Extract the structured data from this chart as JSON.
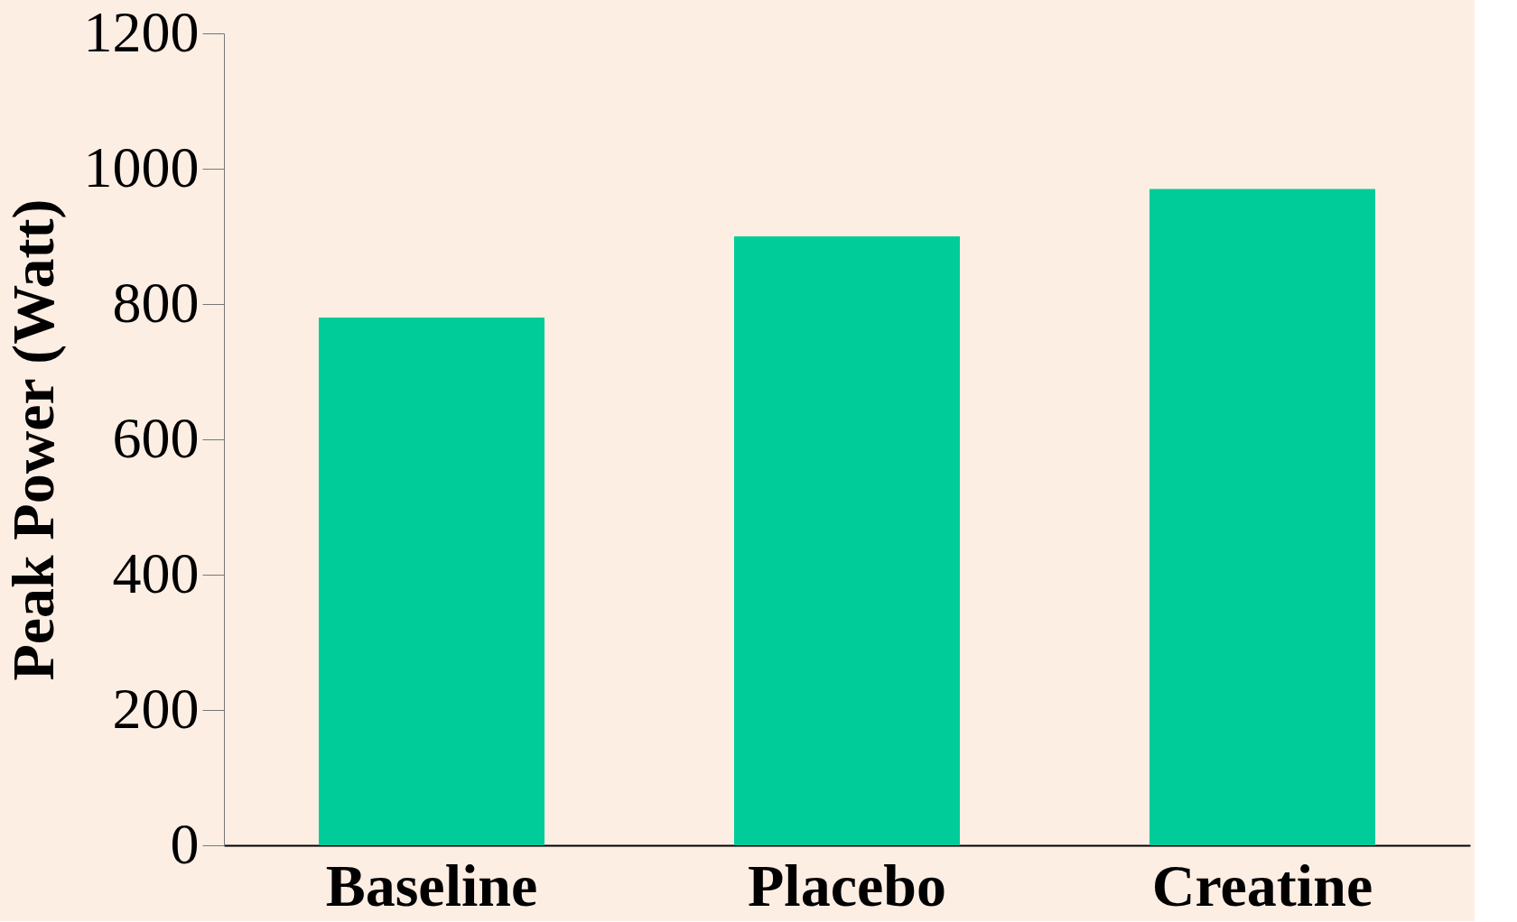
{
  "chart_data": {
    "type": "bar",
    "ylabel": "Peak Power (Watt)",
    "categories": [
      "Baseline",
      "Placebo",
      "Creatine"
    ],
    "values": [
      780,
      900,
      970
    ],
    "color": "#00cc99",
    "ylim": [
      0,
      1200
    ],
    "yticks": [
      0,
      200,
      400,
      600,
      800,
      1000,
      1200
    ],
    "grid": false
  }
}
